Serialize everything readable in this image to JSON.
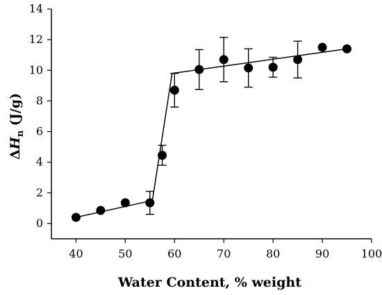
{
  "chart_data": {
    "type": "scatter",
    "xlabel": "Water Content, % weight",
    "ylabel": {
      "prefix": "Δ",
      "symbol": "H",
      "subscript": "n",
      "unit": " (J/g)"
    },
    "xlim": [
      35,
      100
    ],
    "ylim": [
      -1,
      14
    ],
    "xticks": [
      40,
      50,
      60,
      70,
      80,
      90,
      100
    ],
    "yticks": [
      0,
      2,
      4,
      6,
      8,
      10,
      12,
      14
    ],
    "grid": false,
    "legend": "none",
    "colors": {
      "points": "#000000",
      "line": "#000000",
      "axes": "#000000"
    },
    "series": [
      {
        "points": [
          {
            "x": 40,
            "y": 0.4
          },
          {
            "x": 45,
            "y": 0.85
          },
          {
            "x": 50,
            "y": 1.35
          },
          {
            "x": 55,
            "y": 1.35,
            "err": 0.75
          },
          {
            "x": 57.5,
            "y": 4.45,
            "err": 0.65
          },
          {
            "x": 60,
            "y": 8.7,
            "err": 1.1
          },
          {
            "x": 65,
            "y": 10.05,
            "err": 1.3
          },
          {
            "x": 70,
            "y": 10.7,
            "err": 1.45
          },
          {
            "x": 75,
            "y": 10.15,
            "err": 1.25
          },
          {
            "x": 80,
            "y": 10.2,
            "err": 0.65
          },
          {
            "x": 85,
            "y": 10.7,
            "err": 1.2
          },
          {
            "x": 90,
            "y": 11.5
          },
          {
            "x": 95,
            "y": 11.4
          }
        ]
      }
    ],
    "fit_line": [
      {
        "x": 40,
        "y": 0.4
      },
      {
        "x": 55.5,
        "y": 1.5
      },
      {
        "x": 59.5,
        "y": 9.8
      },
      {
        "x": 95,
        "y": 11.4
      }
    ]
  }
}
